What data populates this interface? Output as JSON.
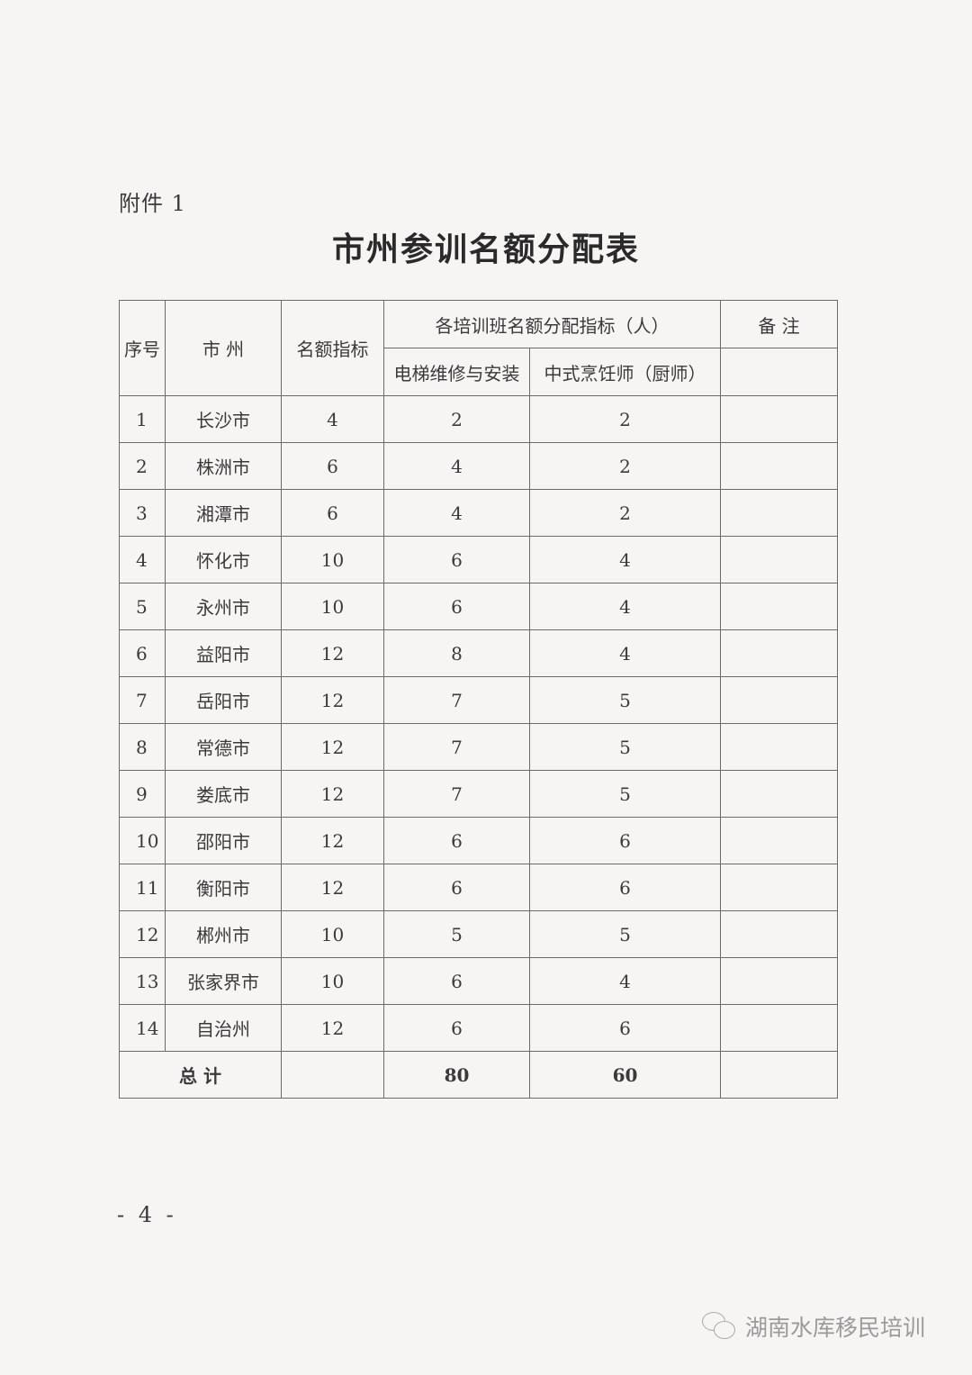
{
  "attachment_label": "附件 1",
  "title": "市州参训名额分配表",
  "table": {
    "headers": {
      "seq": "序号",
      "city": "市  州",
      "quota": "名额指标",
      "group": "各培训班名额分配指标（人）",
      "elevator": "电梯维修与安装",
      "chef": "中式烹饪师（厨师）",
      "remark": "备 注"
    },
    "rows": [
      {
        "seq": "1",
        "city": "长沙市",
        "quota": "4",
        "elevator": "2",
        "chef": "2",
        "remark": ""
      },
      {
        "seq": "2",
        "city": "株洲市",
        "quota": "6",
        "elevator": "4",
        "chef": "2",
        "remark": ""
      },
      {
        "seq": "3",
        "city": "湘潭市",
        "quota": "6",
        "elevator": "4",
        "chef": "2",
        "remark": ""
      },
      {
        "seq": "4",
        "city": "怀化市",
        "quota": "10",
        "elevator": "6",
        "chef": "4",
        "remark": ""
      },
      {
        "seq": "5",
        "city": "永州市",
        "quota": "10",
        "elevator": "6",
        "chef": "4",
        "remark": ""
      },
      {
        "seq": "6",
        "city": "益阳市",
        "quota": "12",
        "elevator": "8",
        "chef": "4",
        "remark": ""
      },
      {
        "seq": "7",
        "city": "岳阳市",
        "quota": "12",
        "elevator": "7",
        "chef": "5",
        "remark": ""
      },
      {
        "seq": "8",
        "city": "常德市",
        "quota": "12",
        "elevator": "7",
        "chef": "5",
        "remark": ""
      },
      {
        "seq": "9",
        "city": "娄底市",
        "quota": "12",
        "elevator": "7",
        "chef": "5",
        "remark": ""
      },
      {
        "seq": "10",
        "city": "邵阳市",
        "quota": "12",
        "elevator": "6",
        "chef": "6",
        "remark": ""
      },
      {
        "seq": "11",
        "city": "衡阳市",
        "quota": "12",
        "elevator": "6",
        "chef": "6",
        "remark": ""
      },
      {
        "seq": "12",
        "city": "郴州市",
        "quota": "10",
        "elevator": "5",
        "chef": "5",
        "remark": ""
      },
      {
        "seq": "13",
        "city": "张家界市",
        "quota": "10",
        "elevator": "6",
        "chef": "4",
        "remark": ""
      },
      {
        "seq": "14",
        "city": "自治州",
        "quota": "12",
        "elevator": "6",
        "chef": "6",
        "remark": ""
      }
    ],
    "total": {
      "label": "总  计",
      "quota": "",
      "elevator": "80",
      "chef": "60",
      "remark": ""
    }
  },
  "page_number": "- 4 -",
  "watermark": {
    "text": "湖南水库移民培训",
    "icon": "wechat-icon"
  }
}
